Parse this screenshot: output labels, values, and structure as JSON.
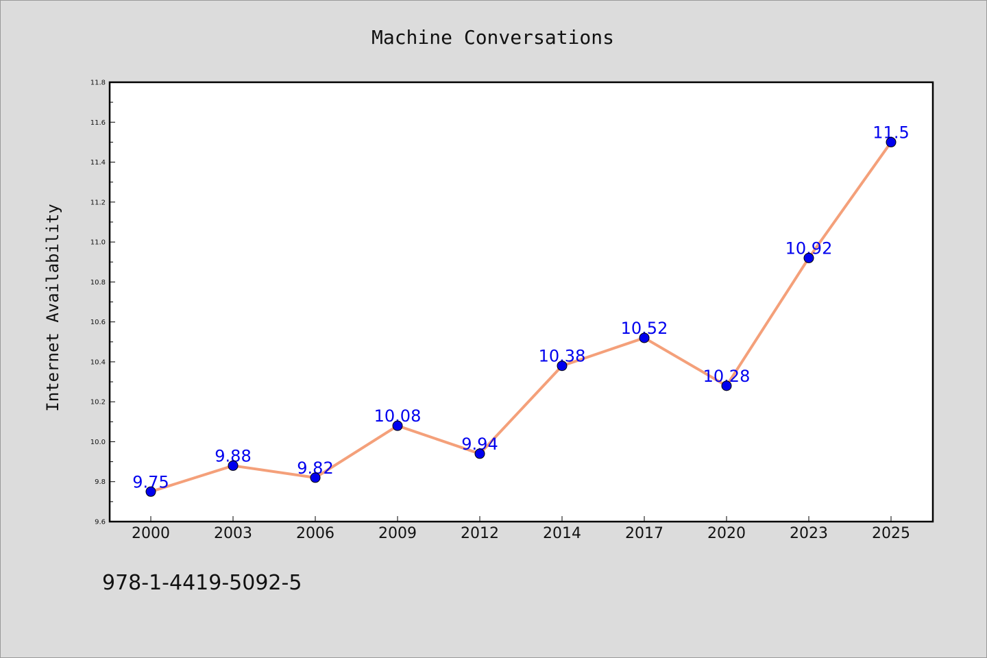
{
  "chart_data": {
    "type": "line",
    "title": "Machine Conversations",
    "xlabel": "",
    "ylabel": "Internet Availability",
    "categories": [
      "2000",
      "2003",
      "2006",
      "2009",
      "2012",
      "2014",
      "2017",
      "2020",
      "2023",
      "2025"
    ],
    "series": [
      {
        "values": [
          9.75,
          9.88,
          9.82,
          10.08,
          9.94,
          10.38,
          10.52,
          10.28,
          10.92,
          11.5
        ],
        "labels": [
          "9.75",
          "9.88",
          "9.82",
          "10.08",
          "9.94",
          "10.38",
          "10.52",
          "10.28",
          "10.92",
          "11.5"
        ],
        "line_color": "#f4a07a",
        "marker_color": "#0000ee",
        "label_color": "#0000ee"
      }
    ],
    "ylim": [
      9.6,
      11.8
    ],
    "yticks": [
      "9.6",
      "9.8",
      "10.0",
      "10.2",
      "10.4",
      "10.6",
      "10.8",
      "11.0",
      "11.2",
      "11.4",
      "11.6",
      "11.8"
    ],
    "grid": false,
    "legend": "none"
  },
  "footer": {
    "isbn": "978-1-4419-5092-5"
  }
}
